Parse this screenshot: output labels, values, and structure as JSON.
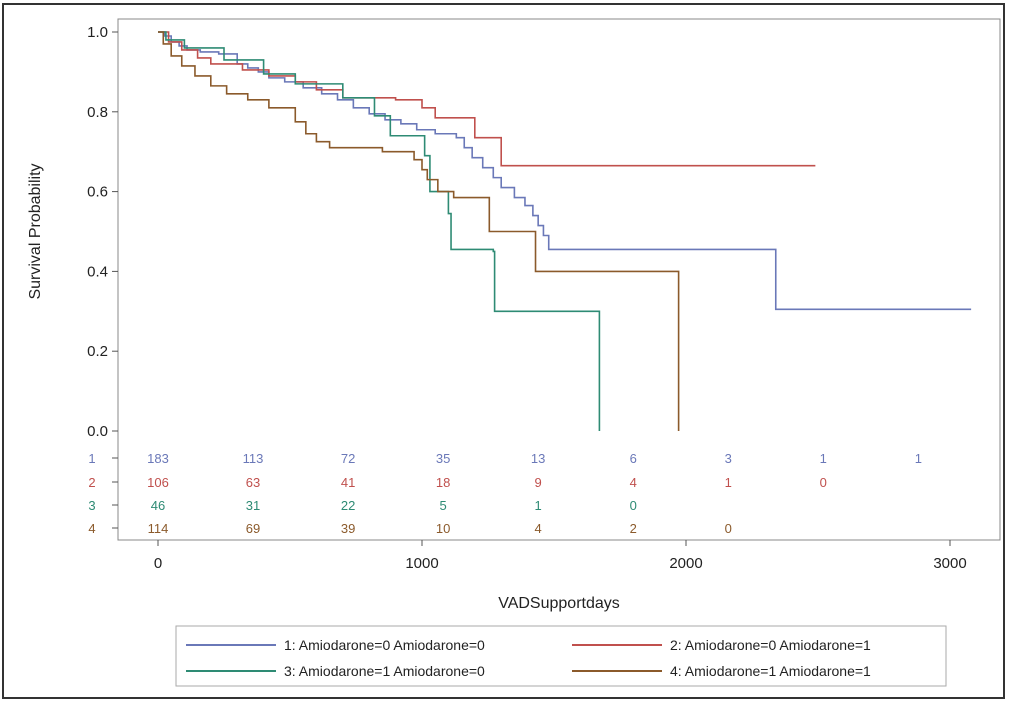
{
  "chart_data": {
    "type": "line",
    "step": true,
    "xlabel": "VADSupportdays",
    "ylabel": "Survival Probability",
    "xlim": [
      -150,
      3160
    ],
    "ylim": [
      0,
      1.0
    ],
    "x_ticks": [
      0,
      1000,
      2000,
      3000
    ],
    "x_tick_labels": [
      "0",
      "1000",
      "2000",
      "3000"
    ],
    "y_ticks": [
      0.0,
      0.2,
      0.4,
      0.6,
      0.8,
      1.0
    ],
    "y_tick_labels": [
      "0.0",
      "0.2",
      "0.4",
      "0.6",
      "0.8",
      "1.0"
    ],
    "grid": false,
    "legend_position": "bottom",
    "series": [
      {
        "name": "1: Amiodarone=0 Amiodarone=0",
        "color": "#6a78b8",
        "points": [
          [
            0,
            1.0
          ],
          [
            25,
            0.99
          ],
          [
            50,
            0.975
          ],
          [
            80,
            0.965
          ],
          [
            110,
            0.955
          ],
          [
            160,
            0.95
          ],
          [
            230,
            0.945
          ],
          [
            300,
            0.92
          ],
          [
            340,
            0.91
          ],
          [
            380,
            0.9
          ],
          [
            420,
            0.885
          ],
          [
            480,
            0.875
          ],
          [
            550,
            0.86
          ],
          [
            620,
            0.845
          ],
          [
            680,
            0.83
          ],
          [
            740,
            0.81
          ],
          [
            800,
            0.795
          ],
          [
            860,
            0.78
          ],
          [
            920,
            0.77
          ],
          [
            980,
            0.755
          ],
          [
            1050,
            0.745
          ],
          [
            1130,
            0.735
          ],
          [
            1160,
            0.71
          ],
          [
            1190,
            0.685
          ],
          [
            1230,
            0.66
          ],
          [
            1270,
            0.635
          ],
          [
            1300,
            0.61
          ],
          [
            1350,
            0.585
          ],
          [
            1390,
            0.565
          ],
          [
            1420,
            0.54
          ],
          [
            1440,
            0.515
          ],
          [
            1460,
            0.49
          ],
          [
            1480,
            0.455
          ],
          [
            2330,
            0.455
          ],
          [
            2340,
            0.305
          ],
          [
            3080,
            0.305
          ]
        ],
        "risk_label": "1",
        "at_risk": [
          "183",
          "113",
          "72",
          "35",
          "13",
          "6",
          "3",
          "1",
          "1"
        ]
      },
      {
        "name": "2: Amiodarone=0 Amiodarone=1",
        "color": "#c0504d",
        "points": [
          [
            0,
            1.0
          ],
          [
            40,
            0.975
          ],
          [
            90,
            0.955
          ],
          [
            150,
            0.935
          ],
          [
            200,
            0.92
          ],
          [
            320,
            0.905
          ],
          [
            420,
            0.89
          ],
          [
            520,
            0.875
          ],
          [
            600,
            0.855
          ],
          [
            700,
            0.835
          ],
          [
            900,
            0.83
          ],
          [
            1000,
            0.81
          ],
          [
            1050,
            0.785
          ],
          [
            1200,
            0.735
          ],
          [
            1300,
            0.665
          ],
          [
            2490,
            0.665
          ]
        ],
        "risk_label": "2",
        "at_risk": [
          "106",
          "63",
          "41",
          "18",
          "9",
          "4",
          "1",
          "0"
        ]
      },
      {
        "name": "3: Amiodarone=1 Amiodarone=0",
        "color": "#2e8b74",
        "points": [
          [
            0,
            1.0
          ],
          [
            30,
            0.98
          ],
          [
            100,
            0.96
          ],
          [
            250,
            0.93
          ],
          [
            400,
            0.895
          ],
          [
            520,
            0.87
          ],
          [
            700,
            0.835
          ],
          [
            820,
            0.79
          ],
          [
            880,
            0.74
          ],
          [
            1010,
            0.69
          ],
          [
            1030,
            0.6
          ],
          [
            1100,
            0.545
          ],
          [
            1110,
            0.455
          ],
          [
            1270,
            0.45
          ],
          [
            1275,
            0.3
          ],
          [
            1670,
            0.3
          ],
          [
            1672,
            0.0
          ]
        ],
        "risk_label": "3",
        "at_risk": [
          "46",
          "31",
          "22",
          "5",
          "1",
          "0"
        ]
      },
      {
        "name": "4: Amiodarone=1 Amiodarone=1",
        "color": "#8b5a2b",
        "points": [
          [
            0,
            1.0
          ],
          [
            20,
            0.97
          ],
          [
            50,
            0.94
          ],
          [
            90,
            0.915
          ],
          [
            140,
            0.89
          ],
          [
            200,
            0.865
          ],
          [
            260,
            0.845
          ],
          [
            340,
            0.83
          ],
          [
            420,
            0.81
          ],
          [
            520,
            0.775
          ],
          [
            560,
            0.745
          ],
          [
            600,
            0.725
          ],
          [
            650,
            0.71
          ],
          [
            850,
            0.7
          ],
          [
            970,
            0.68
          ],
          [
            1000,
            0.655
          ],
          [
            1020,
            0.63
          ],
          [
            1060,
            0.6
          ],
          [
            1120,
            0.585
          ],
          [
            1255,
            0.5
          ],
          [
            1430,
            0.4
          ],
          [
            1970,
            0.4
          ],
          [
            1972,
            0.0
          ]
        ],
        "risk_label": "4",
        "at_risk": [
          "114",
          "69",
          "39",
          "10",
          "4",
          "2",
          "0"
        ]
      }
    ],
    "at_risk_x": [
      0,
      360,
      720,
      1080,
      1440,
      1800,
      2160,
      2520,
      2880
    ]
  }
}
